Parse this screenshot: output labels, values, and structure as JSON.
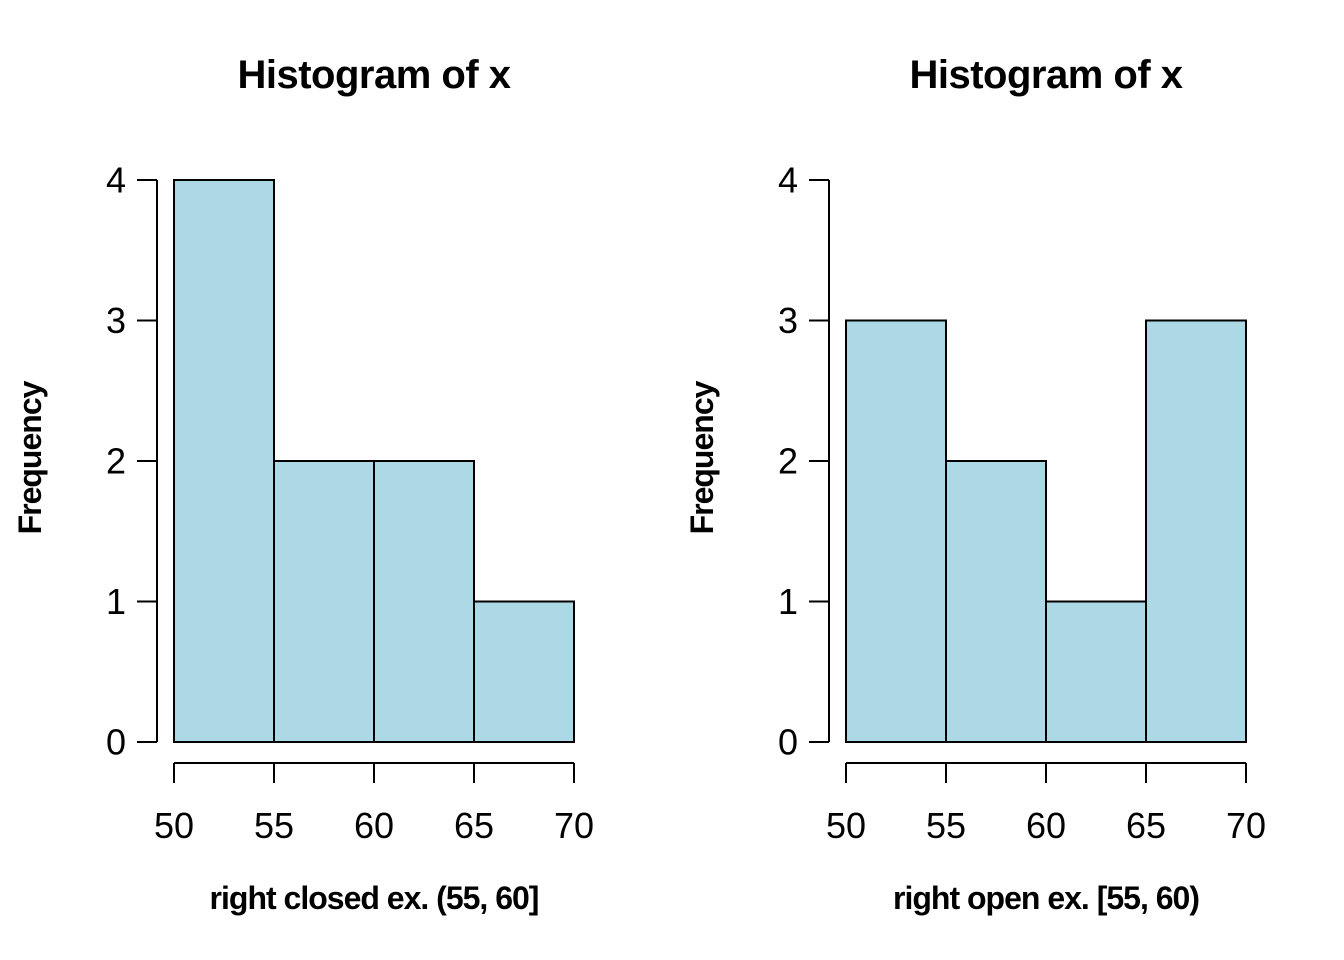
{
  "figure": {
    "background": "#FFFFFF",
    "text_color": "#000000",
    "bar_fill": "#ADD8E6",
    "bar_stroke": "#000000",
    "axis_color": "#000000"
  },
  "chart_data": [
    {
      "type": "bar",
      "subtype": "histogram",
      "title": "Histogram of x",
      "xlabel": "right closed ex. (55, 60]",
      "ylabel": "Frequency",
      "bin_edges": [
        50,
        55,
        60,
        65,
        70
      ],
      "values": [
        4,
        2,
        2,
        1
      ],
      "x_ticks": [
        50,
        55,
        60,
        65,
        70
      ],
      "y_ticks": [
        0,
        1,
        2,
        3,
        4
      ],
      "xlim": [
        50,
        70
      ],
      "ylim": [
        0,
        4
      ],
      "grid": false,
      "legend": "none"
    },
    {
      "type": "bar",
      "subtype": "histogram",
      "title": "Histogram of x",
      "xlabel": "right open ex. [55, 60)",
      "ylabel": "Frequency",
      "bin_edges": [
        50,
        55,
        60,
        65,
        70
      ],
      "values": [
        3,
        2,
        1,
        3
      ],
      "x_ticks": [
        50,
        55,
        60,
        65,
        70
      ],
      "y_ticks": [
        0,
        1,
        2,
        3,
        4
      ],
      "xlim": [
        50,
        70
      ],
      "ylim": [
        0,
        4
      ],
      "grid": false,
      "legend": "none"
    }
  ]
}
